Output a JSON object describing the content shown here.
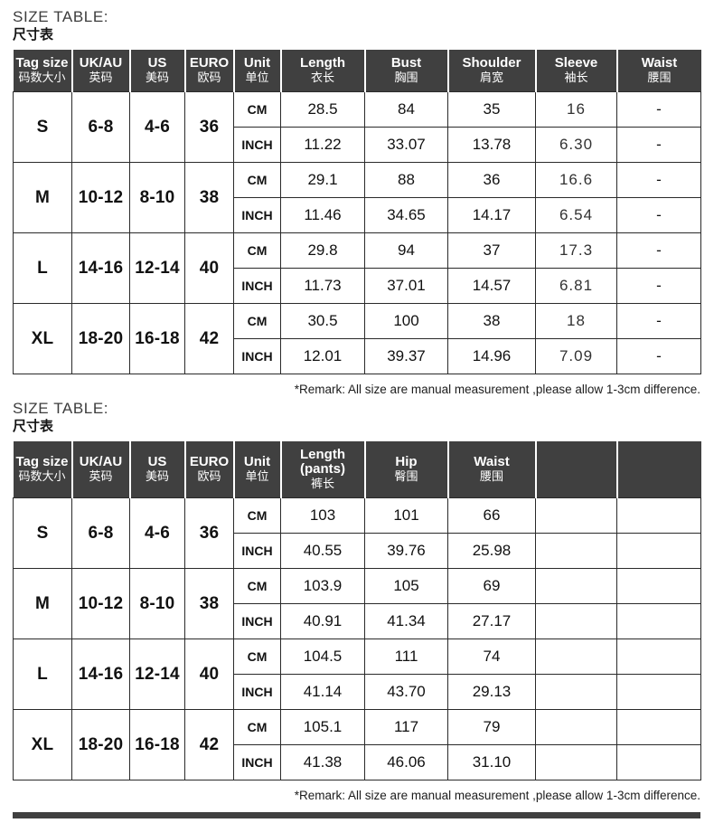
{
  "colors": {
    "header_bg": "#404040",
    "header_text": "#ffffff",
    "border": "#2a2a2a"
  },
  "tables": [
    {
      "title_en": "SIZE TABLE:",
      "title_cn": "尺寸表",
      "unit_labels": [
        "CM",
        "INCH"
      ],
      "columns": [
        {
          "key": "tag-size",
          "en": "Tag size",
          "cn": "码数大小"
        },
        {
          "key": "uk-au",
          "en": "UK/AU",
          "cn": "英码"
        },
        {
          "key": "us",
          "en": "US",
          "cn": "美码"
        },
        {
          "key": "euro",
          "en": "EURO",
          "cn": "欧码"
        },
        {
          "key": "unit",
          "en": "Unit",
          "cn": "单位"
        },
        {
          "key": "length",
          "en": "Length",
          "cn": "衣长"
        },
        {
          "key": "bust",
          "en": "Bust",
          "cn": "胸围"
        },
        {
          "key": "shoulder",
          "en": "Shoulder",
          "cn": "肩宽"
        },
        {
          "key": "sleeve",
          "en": "Sleeve",
          "cn": "袖长"
        },
        {
          "key": "waist",
          "en": "Waist",
          "cn": "腰围"
        }
      ],
      "light_value_columns": [
        3
      ],
      "rows": [
        {
          "tag": "S",
          "uk_au": "6-8",
          "us": "4-6",
          "euro": "36",
          "cm": [
            "28.5",
            "84",
            "35",
            "16",
            "-"
          ],
          "inch": [
            "11.22",
            "33.07",
            "13.78",
            "6.30",
            "-"
          ]
        },
        {
          "tag": "M",
          "uk_au": "10-12",
          "us": "8-10",
          "euro": "38",
          "cm": [
            "29.1",
            "88",
            "36",
            "16.6",
            "-"
          ],
          "inch": [
            "11.46",
            "34.65",
            "14.17",
            "6.54",
            "-"
          ]
        },
        {
          "tag": "L",
          "uk_au": "14-16",
          "us": "12-14",
          "euro": "40",
          "cm": [
            "29.8",
            "94",
            "37",
            "17.3",
            "-"
          ],
          "inch": [
            "11.73",
            "37.01",
            "14.57",
            "6.81",
            "-"
          ]
        },
        {
          "tag": "XL",
          "uk_au": "18-20",
          "us": "16-18",
          "euro": "42",
          "cm": [
            "30.5",
            "100",
            "38",
            "18",
            "-"
          ],
          "inch": [
            "12.01",
            "39.37",
            "14.96",
            "7.09",
            "-"
          ]
        }
      ],
      "remark": "*Remark: All size are manual measurement ,please allow 1-3cm difference."
    },
    {
      "title_en": "SIZE TABLE:",
      "title_cn": "尺寸表",
      "unit_labels": [
        "CM",
        "INCH"
      ],
      "columns": [
        {
          "key": "tag-size",
          "en": "Tag size",
          "cn": "码数大小"
        },
        {
          "key": "uk-au",
          "en": "UK/AU",
          "cn": "英码"
        },
        {
          "key": "us",
          "en": "US",
          "cn": "美码"
        },
        {
          "key": "euro",
          "en": "EURO",
          "cn": "欧码"
        },
        {
          "key": "unit",
          "en": "Unit",
          "cn": "单位"
        },
        {
          "key": "length-pants",
          "en": "Length",
          "en2": "(pants)",
          "cn": "裤长"
        },
        {
          "key": "hip",
          "en": "Hip",
          "cn": "臀围"
        },
        {
          "key": "waist",
          "en": "Waist",
          "cn": "腰围"
        },
        {
          "key": "empty-1",
          "en": "",
          "cn": ""
        },
        {
          "key": "empty-2",
          "en": "",
          "cn": ""
        }
      ],
      "light_value_columns": [],
      "rows": [
        {
          "tag": "S",
          "uk_au": "6-8",
          "us": "4-6",
          "euro": "36",
          "cm": [
            "103",
            "101",
            "66",
            "",
            ""
          ],
          "inch": [
            "40.55",
            "39.76",
            "25.98",
            "",
            ""
          ]
        },
        {
          "tag": "M",
          "uk_au": "10-12",
          "us": "8-10",
          "euro": "38",
          "cm": [
            "103.9",
            "105",
            "69",
            "",
            ""
          ],
          "inch": [
            "40.91",
            "41.34",
            "27.17",
            "",
            ""
          ]
        },
        {
          "tag": "L",
          "uk_au": "14-16",
          "us": "12-14",
          "euro": "40",
          "cm": [
            "104.5",
            "111",
            "74",
            "",
            ""
          ],
          "inch": [
            "41.14",
            "43.70",
            "29.13",
            "",
            ""
          ]
        },
        {
          "tag": "XL",
          "uk_au": "18-20",
          "us": "16-18",
          "euro": "42",
          "cm": [
            "105.1",
            "117",
            "79",
            "",
            ""
          ],
          "inch": [
            "41.38",
            "46.06",
            "31.10",
            "",
            ""
          ]
        }
      ],
      "remark": "*Remark: All size are manual measurement ,please allow 1-3cm difference."
    }
  ]
}
